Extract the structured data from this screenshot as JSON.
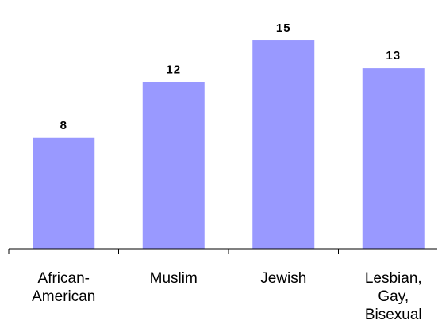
{
  "chart_data": {
    "type": "bar",
    "categories": [
      [
        "African-",
        "American"
      ],
      [
        "Muslim"
      ],
      [
        "Jewish"
      ],
      [
        "Lesbian,",
        "Gay,",
        "Bisexual"
      ]
    ],
    "values": [
      8,
      12,
      15,
      13
    ],
    "data_labels": [
      "8",
      "12",
      "15",
      "13"
    ],
    "ylim": [
      0,
      16.2
    ],
    "grid": false,
    "legend": "none",
    "bar_color": "#9999ff",
    "axis_color": "#000000"
  }
}
